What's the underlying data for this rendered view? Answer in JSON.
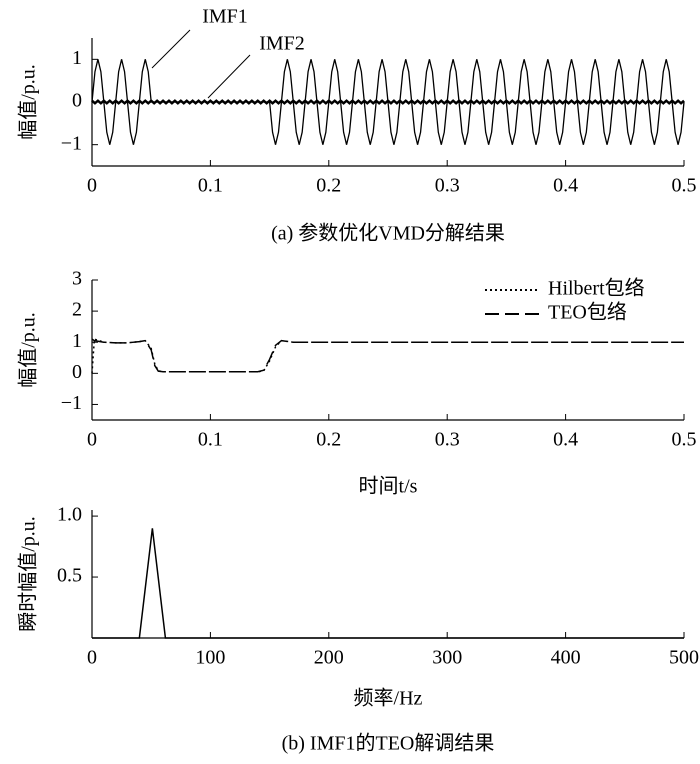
{
  "chart_data": [
    {
      "type": "line",
      "caption": "(a) 参数优化VMD分解结果",
      "ylabel": "幅值/p.u.",
      "annotations": [
        {
          "text": "IMF1"
        },
        {
          "text": "IMF2"
        }
      ],
      "xlim": [
        0,
        0.5
      ],
      "xticks": [
        0,
        0.1,
        0.2,
        0.3,
        0.4,
        0.5
      ],
      "ylim": [
        -1.5,
        1.5
      ],
      "yticks": [
        {
          "value": -1,
          "label": "−1"
        },
        0,
        1
      ],
      "x": [
        0,
        0.0025,
        0.005,
        0.0075,
        0.01,
        0.0125,
        0.015,
        0.0175,
        0.02,
        0.0225,
        0.025,
        0.0275,
        0.03,
        0.0325,
        0.035,
        0.0375,
        0.04,
        0.0425,
        0.045,
        0.0475,
        0.05,
        0.0525,
        0.055,
        0.0575,
        0.06,
        0.0625,
        0.065,
        0.0675,
        0.07,
        0.0725,
        0.075,
        0.0775,
        0.08,
        0.0825,
        0.085,
        0.0875,
        0.09,
        0.0925,
        0.095,
        0.0975,
        0.1,
        0.1025,
        0.105,
        0.1075,
        0.11,
        0.1125,
        0.115,
        0.1175,
        0.12,
        0.1225,
        0.125,
        0.1275,
        0.13,
        0.1325,
        0.135,
        0.1375,
        0.14,
        0.1425,
        0.145,
        0.1475,
        0.15,
        0.1525,
        0.155,
        0.1575,
        0.16,
        0.1625,
        0.165,
        0.1675,
        0.17,
        0.1725,
        0.175,
        0.1775,
        0.18,
        0.1825,
        0.185,
        0.1875,
        0.19,
        0.1925,
        0.195,
        0.1975,
        0.2,
        0.2025,
        0.205,
        0.2075,
        0.21,
        0.2125,
        0.215,
        0.2175,
        0.22,
        0.2225,
        0.225,
        0.2275,
        0.23,
        0.2325,
        0.235,
        0.2375,
        0.24,
        0.2425,
        0.245,
        0.2475,
        0.25,
        0.2525,
        0.255,
        0.2575,
        0.26,
        0.2625,
        0.265,
        0.2675,
        0.27,
        0.2725,
        0.275,
        0.2775,
        0.28,
        0.2825,
        0.285,
        0.2875,
        0.29,
        0.2925,
        0.295,
        0.2975,
        0.3,
        0.3025,
        0.305,
        0.3075,
        0.31,
        0.3125,
        0.315,
        0.3175,
        0.32,
        0.3225,
        0.325,
        0.3275,
        0.33,
        0.3325,
        0.335,
        0.3375,
        0.34,
        0.3425,
        0.345,
        0.3475,
        0.35,
        0.3525,
        0.355,
        0.3575,
        0.36,
        0.3625,
        0.365,
        0.3675,
        0.37,
        0.3725,
        0.375,
        0.3775,
        0.38,
        0.3825,
        0.385,
        0.3875,
        0.39,
        0.3925,
        0.395,
        0.3975,
        0.4,
        0.4025,
        0.405,
        0.4075,
        0.41,
        0.4125,
        0.415,
        0.4175,
        0.42,
        0.4225,
        0.425,
        0.4275,
        0.43,
        0.4325,
        0.435,
        0.4375,
        0.44,
        0.4425,
        0.445,
        0.4475,
        0.45,
        0.4525,
        0.455,
        0.4575,
        0.46,
        0.4625,
        0.465,
        0.4675,
        0.47,
        0.4725,
        0.475,
        0.4775,
        0.48,
        0.4825,
        0.485,
        0.4875,
        0.49,
        0.4925,
        0.495,
        0.4975,
        0.5
      ],
      "series": [
        {
          "name": "IMF1",
          "color": "#000000",
          "width": 1.3,
          "values": [
            0,
            0.71,
            1,
            0.71,
            0,
            -0.71,
            -1,
            -0.71,
            0,
            0.71,
            1,
            0.71,
            0,
            -0.71,
            -1,
            -0.71,
            0,
            0.71,
            1,
            0.71,
            0,
            0,
            0,
            0,
            0,
            0,
            0,
            0,
            0,
            0,
            0,
            0,
            0,
            0,
            0,
            0,
            0,
            0,
            0,
            0,
            0,
            0,
            0,
            0,
            0,
            0,
            0,
            0,
            0,
            0,
            0,
            0,
            0,
            0,
            0,
            0,
            0,
            0,
            0,
            0,
            0,
            -0.71,
            -1,
            -0.71,
            0,
            0.71,
            1,
            0.71,
            0,
            -0.71,
            -1,
            -0.71,
            0,
            0.71,
            1,
            0.71,
            0,
            -0.71,
            -1,
            -0.71,
            0,
            0.71,
            1,
            0.71,
            0,
            -0.71,
            -1,
            -0.71,
            0,
            0.71,
            1,
            0.71,
            0,
            -0.71,
            -1,
            -0.71,
            0,
            0.71,
            1,
            0.71,
            0,
            -0.71,
            -1,
            -0.71,
            0,
            0.71,
            1,
            0.71,
            0,
            -0.71,
            -1,
            -0.71,
            0,
            0.71,
            1,
            0.71,
            0,
            -0.71,
            -1,
            -0.71,
            0,
            0.71,
            1,
            0.71,
            0,
            -0.71,
            -1,
            -0.71,
            0,
            0.71,
            1,
            0.71,
            0,
            -0.71,
            -1,
            -0.71,
            0,
            0.71,
            1,
            0.71,
            0,
            -0.71,
            -1,
            -0.71,
            0,
            0.71,
            1,
            0.71,
            0,
            -0.71,
            -1,
            -0.71,
            0,
            0.71,
            1,
            0.71,
            0,
            -0.71,
            -1,
            -0.71,
            0,
            0.71,
            1,
            0.71,
            0,
            -0.71,
            -1,
            -0.71,
            0,
            0.71,
            1,
            0.71,
            0,
            -0.71,
            -1,
            -0.71,
            0,
            0.71,
            1,
            0.71,
            0,
            -0.71,
            -1,
            -0.71,
            0,
            0.71,
            1,
            0.71,
            0,
            -0.71,
            -1,
            -0.71,
            0,
            0.71,
            1,
            0.71,
            0,
            -0.71,
            -1,
            -0.71,
            0
          ]
        },
        {
          "name": "IMF2",
          "color": "#000000",
          "width": 2.5,
          "values": [
            0.03,
            -0.03,
            0.03,
            -0.03,
            0.03,
            -0.03,
            0.03,
            -0.03,
            0.03,
            -0.03,
            0.03,
            -0.03,
            0.03,
            -0.03,
            0.03,
            -0.03,
            0.03,
            -0.03,
            0.03,
            -0.03,
            0.03,
            -0.03,
            0.03,
            -0.03,
            0.03,
            -0.03,
            0.03,
            -0.03,
            0.03,
            -0.03,
            0.03,
            -0.03,
            0.03,
            -0.03,
            0.03,
            -0.03,
            0.03,
            -0.03,
            0.03,
            -0.03,
            0.03,
            -0.03,
            0.03,
            -0.03,
            0.03,
            -0.03,
            0.03,
            -0.03,
            0.03,
            -0.03,
            0.03,
            -0.03,
            0.03,
            -0.03,
            0.03,
            -0.03,
            0.03,
            -0.03,
            0.03,
            -0.03,
            0.03,
            -0.03,
            0.03,
            -0.03,
            0.03,
            -0.03,
            0.03,
            -0.03,
            0.03,
            -0.03,
            0.03,
            -0.03,
            0.03,
            -0.03,
            0.03,
            -0.03,
            0.03,
            -0.03,
            0.03,
            -0.03,
            0.03,
            -0.03,
            0.03,
            -0.03,
            0.03,
            -0.03,
            0.03,
            -0.03,
            0.03,
            -0.03,
            0.03,
            -0.03,
            0.03,
            -0.03,
            0.03,
            -0.03,
            0.03,
            -0.03,
            0.03,
            -0.03,
            0.03,
            -0.03,
            0.03,
            -0.03,
            0.03,
            -0.03,
            0.03,
            -0.03,
            0.03,
            -0.03,
            0.03,
            -0.03,
            0.03,
            -0.03,
            0.03,
            -0.03,
            0.03,
            -0.03,
            0.03,
            -0.03,
            0.03,
            -0.03,
            0.03,
            -0.03,
            0.03,
            -0.03,
            0.03,
            -0.03,
            0.03,
            -0.03,
            0.03,
            -0.03,
            0.03,
            -0.03,
            0.03,
            -0.03,
            0.03,
            -0.03,
            0.03,
            -0.03,
            0.03,
            -0.03,
            0.03,
            -0.03,
            0.03,
            -0.03,
            0.03,
            -0.03,
            0.03,
            -0.03,
            0.03,
            -0.03,
            0.03,
            -0.03,
            0.03,
            -0.03,
            0.03,
            -0.03,
            0.03,
            -0.03,
            0.03,
            -0.03,
            0.03,
            -0.03,
            0.03,
            -0.03,
            0.03,
            -0.03,
            0.03,
            -0.03,
            0.03,
            -0.03,
            0.03,
            -0.03,
            0.03,
            -0.03,
            0.03,
            -0.03,
            0.03,
            -0.03,
            0.03,
            -0.03,
            0.03,
            -0.03,
            0.03,
            -0.03,
            0.03,
            -0.03,
            0.03,
            -0.03,
            0.03,
            -0.03,
            0.03,
            -0.03,
            0.03,
            -0.03,
            0.03,
            -0.03,
            0.03,
            -0.03,
            0.03
          ]
        }
      ]
    },
    {
      "type": "line",
      "ylabel": "幅值/p.u.",
      "xlabel": "时间t/s",
      "legend": "upper right",
      "xlim": [
        0,
        0.5
      ],
      "xticks": [
        0,
        0.1,
        0.2,
        0.3,
        0.4,
        0.5
      ],
      "ylim": [
        -1.5,
        3
      ],
      "yticks": [
        {
          "value": -1,
          "label": "−1"
        },
        0,
        1,
        2,
        3
      ],
      "x": [
        0,
        0.002,
        0.01,
        0.02,
        0.03,
        0.04,
        0.045,
        0.05,
        0.053,
        0.056,
        0.06,
        0.1,
        0.14,
        0.145,
        0.15,
        0.155,
        0.16,
        0.17,
        0.2,
        0.3,
        0.4,
        0.5
      ],
      "series": [
        {
          "name": "Hilbert包络",
          "color": "#000000",
          "dash": "dotted",
          "values": [
            0,
            1.1,
            1.0,
            0.98,
            0.98,
            1.02,
            1.05,
            0.8,
            0.3,
            0.08,
            0.05,
            0.05,
            0.05,
            0.08,
            0.4,
            0.85,
            1.05,
            1.0,
            1.0,
            1.0,
            1.0,
            1.0
          ]
        },
        {
          "name": "TEO包络",
          "color": "#000000",
          "dash": "dashed",
          "values": [
            1.1,
            1.05,
            1.0,
            0.98,
            0.98,
            1.02,
            1.05,
            0.75,
            0.25,
            0.07,
            0.05,
            0.05,
            0.05,
            0.1,
            0.45,
            0.9,
            1.05,
            1.0,
            1.0,
            1.0,
            1.0,
            1.0
          ]
        }
      ]
    },
    {
      "type": "line",
      "caption": "(b) IMF1的TEO解调结果",
      "ylabel": "瞬时幅值/p.u.",
      "xlabel": "频率/Hz",
      "xlim": [
        0,
        500
      ],
      "xticks": [
        0,
        100,
        200,
        300,
        400,
        500
      ],
      "ylim": [
        0,
        1.05
      ],
      "yticks": [
        0.5,
        {
          "value": 1,
          "label": "1.0"
        }
      ],
      "x": [
        0,
        40,
        51,
        62,
        500
      ],
      "series": [
        {
          "name": "IMF1",
          "color": "#000000",
          "values": [
            0,
            0,
            0.9,
            0,
            0
          ]
        }
      ]
    }
  ]
}
